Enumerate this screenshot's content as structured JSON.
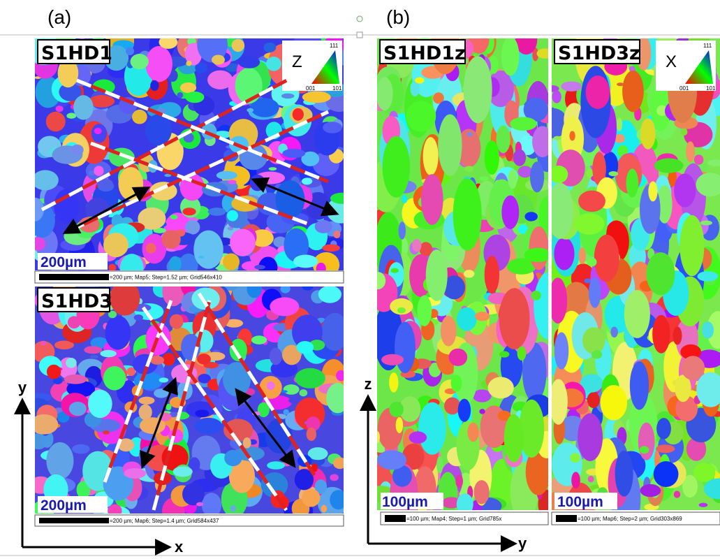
{
  "labels": {
    "a": "(a)",
    "b": "(b)"
  },
  "maps": [
    {
      "label": "S1HD1",
      "axis": "Z",
      "tri": [
        "111",
        "001",
        "101"
      ],
      "scale": "200µm",
      "info": "=200 µm; Map5; Step=1.52 µm; Grid546x410"
    },
    {
      "label": "S1HD3",
      "scale": "200µm",
      "info": "=200 µm; Map6; Step=1.4 µm; Grid584x437"
    },
    {
      "label": "S1HD1z",
      "scale": "100µm",
      "info": "=100 µm; Map4; Step=1 µm; Grid785x"
    },
    {
      "label": "S1HD3z",
      "axis": "X",
      "tri": [
        "111",
        "001",
        "101"
      ],
      "scale": "100µm",
      "info": "=100 µm; Map6; Step=2 µm; Grid303x869"
    }
  ],
  "axes_a": {
    "vertical": "y",
    "horizontal": "x"
  },
  "axes_b": {
    "vertical": "z",
    "horizontal": "y"
  }
}
